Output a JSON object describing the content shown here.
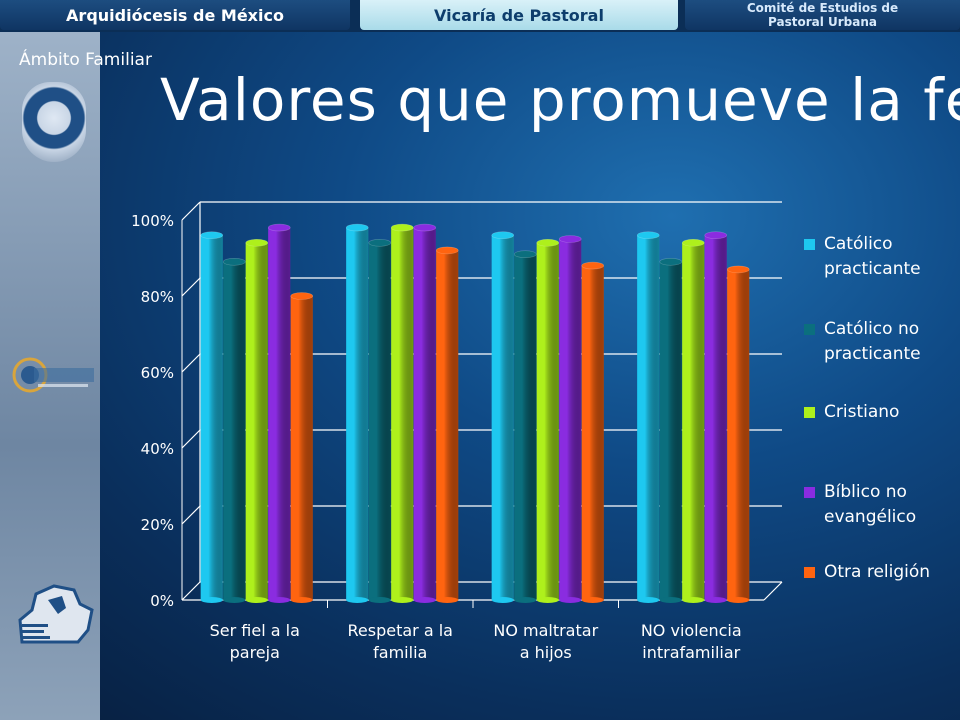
{
  "header": {
    "tabs": [
      {
        "label": "Arquidiócesis de México"
      },
      {
        "label": "Vicaría de Pastoral"
      },
      {
        "label_line1": "Comité de Estudios de",
        "label_line2": "Pastoral Urbana"
      }
    ]
  },
  "section_label": "Ámbito Familiar",
  "title": "Valores que promueve la fe",
  "colors": {
    "background": "#0f4a86",
    "sidebar": "#8da2b9"
  },
  "chart_data": {
    "type": "bar",
    "style": "3d-cylinder",
    "categories": [
      "Ser fiel a la pareja",
      "Respetar a la familia",
      "NO maltratar a hijos",
      "NO violencia intrafamiliar"
    ],
    "category_lines": [
      [
        "Ser fiel a la",
        "pareja"
      ],
      [
        "Respetar a la",
        "familia"
      ],
      [
        "NO maltratar",
        "a hijos"
      ],
      [
        "NO violencia",
        "intrafamiliar"
      ]
    ],
    "series": [
      {
        "name": "Católico practicante",
        "lines": [
          "Católico",
          "practicante"
        ],
        "color": "#1ec8f0",
        "values": [
          96,
          98,
          96,
          96
        ]
      },
      {
        "name": "Católico no practicante",
        "lines": [
          "Católico no",
          "practicante"
        ],
        "color": "#0b6f7e",
        "values": [
          89,
          94,
          91,
          89
        ]
      },
      {
        "name": "Cristiano",
        "lines": [
          "Cristiano"
        ],
        "color": "#aef01c",
        "values": [
          94,
          98,
          94,
          94
        ]
      },
      {
        "name": "Bíblico no evangélico",
        "lines": [
          "Bíblico no",
          "evangélico"
        ],
        "color": "#8a2ce0",
        "values": [
          98,
          98,
          95,
          96
        ]
      },
      {
        "name": "Otra religión",
        "lines": [
          "Otra religión"
        ],
        "color": "#ff6410",
        "values": [
          80,
          92,
          88,
          87
        ]
      }
    ],
    "y_ticks": [
      "0%",
      "20%",
      "40%",
      "60%",
      "80%",
      "100%"
    ],
    "ylim": [
      0,
      100
    ],
    "grid": true,
    "legend_position": "right"
  }
}
